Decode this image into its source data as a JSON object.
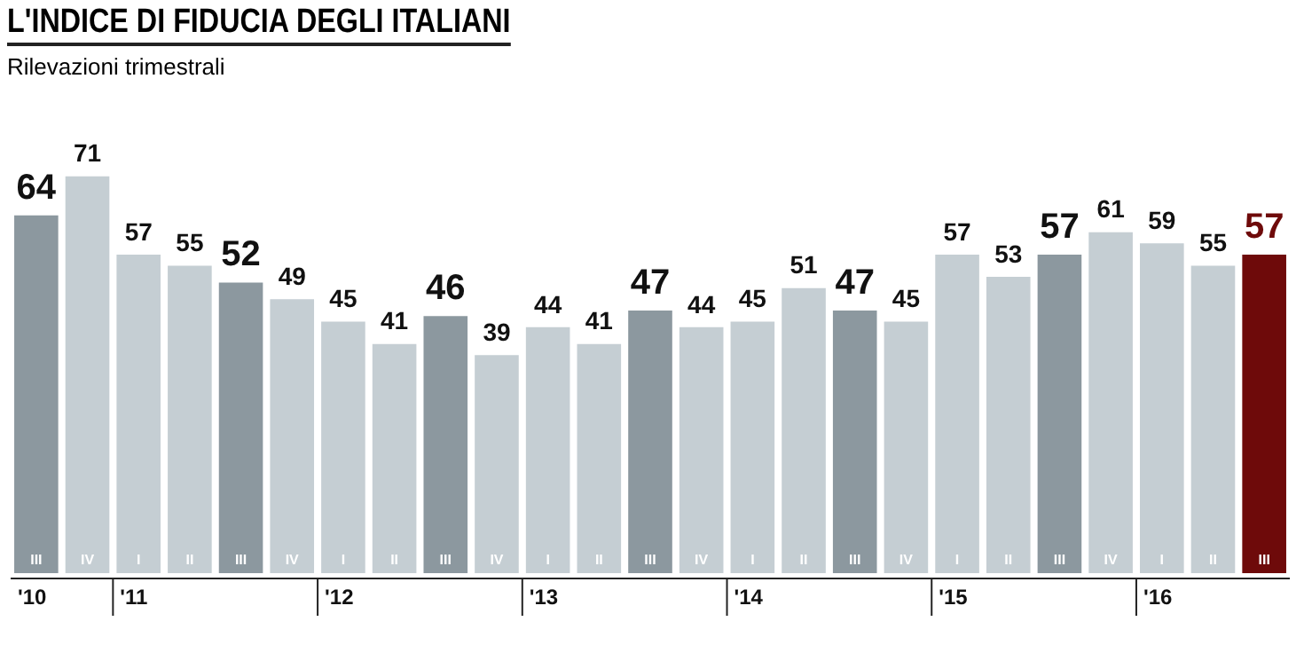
{
  "chart_data": {
    "type": "bar",
    "title": "L'INDICE DI FIDUCIA DEGLI ITALIANI",
    "subtitle": "Rilevazioni trimestrali",
    "categories": [
      "III",
      "IV",
      "I",
      "II",
      "III",
      "IV",
      "I",
      "II",
      "III",
      "IV",
      "I",
      "II",
      "III",
      "IV",
      "I",
      "II",
      "III",
      "IV",
      "I",
      "II",
      "III",
      "IV",
      "I",
      "II",
      "III"
    ],
    "values": [
      64,
      71,
      57,
      55,
      52,
      49,
      45,
      41,
      46,
      39,
      44,
      41,
      47,
      44,
      45,
      51,
      47,
      45,
      57,
      53,
      57,
      61,
      59,
      55,
      57
    ],
    "colors": [
      "#8c989f",
      "#c5ced3",
      "#c5ced3",
      "#c5ced3",
      "#8c989f",
      "#c5ced3",
      "#c5ced3",
      "#c5ced3",
      "#8c989f",
      "#c5ced3",
      "#c5ced3",
      "#c5ced3",
      "#8c989f",
      "#c5ced3",
      "#c5ced3",
      "#c5ced3",
      "#8c989f",
      "#c5ced3",
      "#c5ced3",
      "#c5ced3",
      "#8c989f",
      "#c5ced3",
      "#c5ced3",
      "#c5ced3",
      "#6e0a0a"
    ],
    "annotations": [
      "'10",
      "'11",
      "'12",
      "'13",
      "'14",
      "'15",
      "'16"
    ],
    "data_labels": true,
    "tick_labels": "x",
    "grid": false,
    "legend": false
  }
}
